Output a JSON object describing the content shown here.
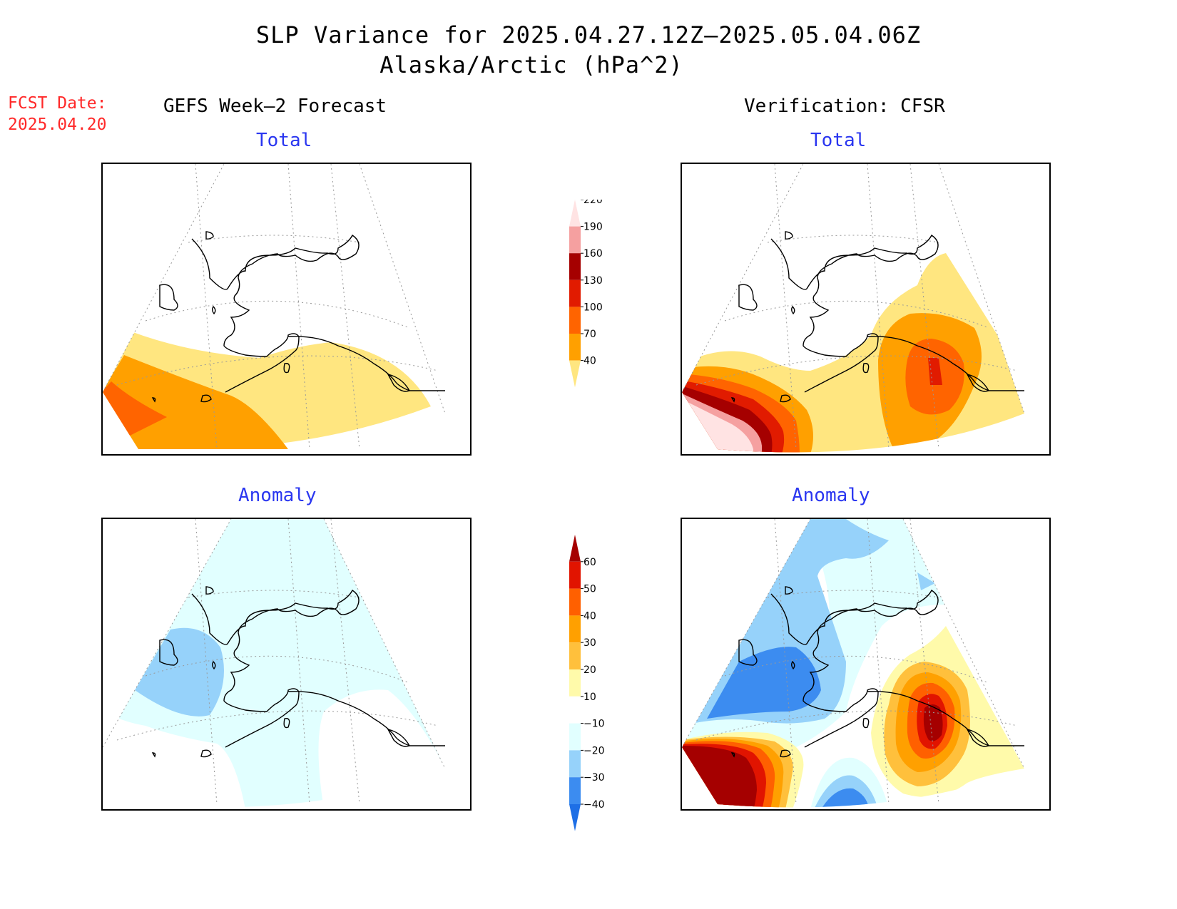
{
  "header": {
    "title": "SLP Variance for 2025.04.27.12Z–2025.05.04.06Z",
    "subtitle": "Alaska/Arctic (hPa^2)",
    "fcst_label": "FCST Date:",
    "fcst_date": "2025.04.20"
  },
  "columns": {
    "left": "GEFS Week–2 Forecast",
    "right": "Verification: CFSR"
  },
  "panels": {
    "fcst_total": "Total",
    "verif_total": "Total",
    "fcst_anomaly": "Anomaly",
    "verif_anomaly": "Anomaly"
  },
  "colorbars": {
    "total": {
      "labels": [
        "40",
        "70",
        "100",
        "130",
        "160",
        "190",
        "220"
      ],
      "colors": [
        "#ffe680",
        "#ffa000",
        "#ff6400",
        "#e11b00",
        "#a50000",
        "#f5a0a0",
        "#ffe3e3"
      ]
    },
    "anomaly": {
      "labels": [
        "−40",
        "−30",
        "−20",
        "−10",
        "10",
        "20",
        "30",
        "40",
        "50",
        "60"
      ],
      "colors": [
        "#1e6fe6",
        "#3c8cf0",
        "#96d2fa",
        "#e1ffff",
        "#ffffff",
        "#fffaaa",
        "#ffc03c",
        "#ffa000",
        "#ff6000",
        "#e11400",
        "#a50000"
      ]
    }
  },
  "map_colors": {
    "coast": "#000000",
    "grid": "#999999"
  }
}
